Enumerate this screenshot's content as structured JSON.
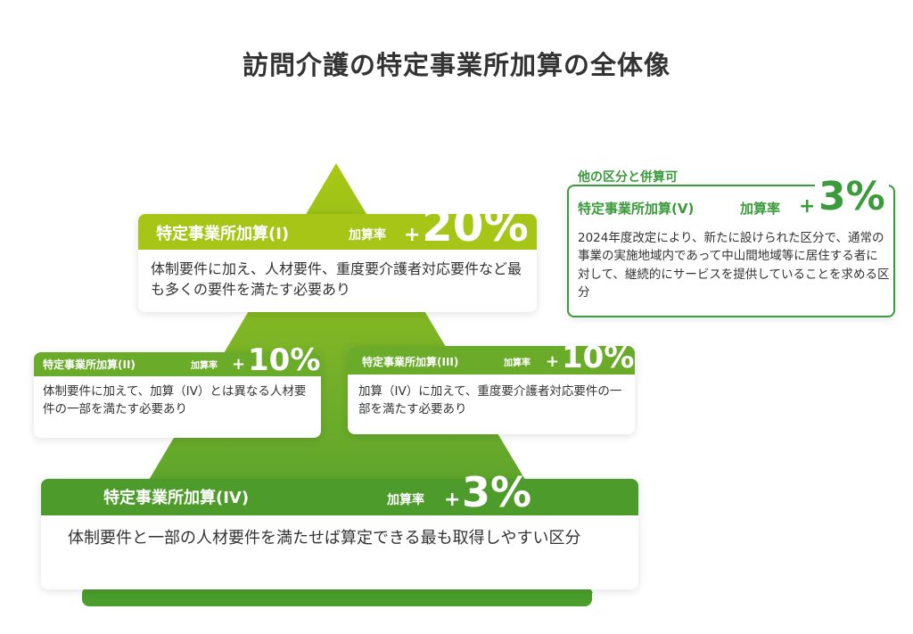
{
  "title": "訪問介護の特定事業所加算の全体像",
  "colors": {
    "tier1": "#a6c517",
    "tier2": "#6aab2a",
    "tier4": "#4d9c2b",
    "tier5": "#3b9a3b"
  },
  "rate_label": "加算率",
  "plus": "+",
  "tiers": [
    {
      "name": "特定事業所加算(I)",
      "rate": "20%",
      "desc": "体制要件に加え、人材要件、重度要介護者対応要件など最も多くの要件を満たす必要あり"
    },
    {
      "name": "特定事業所加算(II)",
      "rate": "10%",
      "desc": "体制要件に加えて、加算（IV）とは異なる人材要件の一部を満たす必要あり"
    },
    {
      "name": "特定事業所加算(III)",
      "rate": "10%",
      "desc": "加算（IV）に加えて、重度要介護者対応要件の一部を満たす必要あり"
    },
    {
      "name": "特定事業所加算(IV)",
      "rate": "3%",
      "desc": "体制要件と一部の人材要件を満たせば算定できる最も取得しやすい区分"
    }
  ],
  "extra": {
    "tag": "他の区分と併算可",
    "name": "特定事業所加算(V)",
    "rate": "3%",
    "desc": "2024年度改定により、新たに設けられた区分で、通常の事業の実施地域内であって中山間地域等に居住する者に対して、継続的にサービスを提供していることを求める区分"
  }
}
